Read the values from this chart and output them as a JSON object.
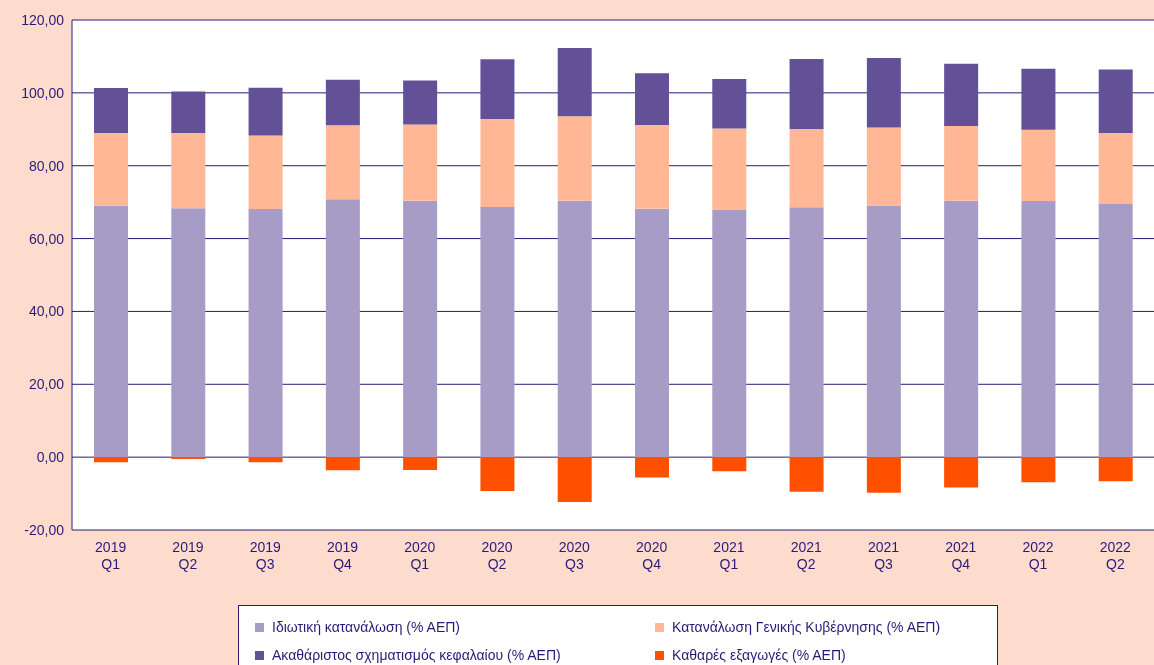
{
  "chart_data": {
    "type": "bar",
    "stacked": true,
    "categories": [
      "2019 Q1",
      "2019 Q2",
      "2019 Q3",
      "2019 Q4",
      "2020 Q1",
      "2020 Q2",
      "2020 Q3",
      "2020 Q4",
      "2021 Q1",
      "2021 Q2",
      "2021 Q3",
      "2021 Q4",
      "2022 Q1",
      "2022 Q2"
    ],
    "series": [
      {
        "name": "Ιδιωτική κατανάλωση (% ΑΕΠ)",
        "color": "#a69cc6",
        "values": [
          69.0,
          68.3,
          68.1,
          70.8,
          70.4,
          68.7,
          70.4,
          68.2,
          68.0,
          68.6,
          69.1,
          70.4,
          70.3,
          69.5
        ]
      },
      {
        "name": "Κατανάλωση Γενικής Κυβέρνησης (% ΑΕΠ)",
        "color": "#ffb796",
        "values": [
          20.0,
          20.7,
          20.2,
          20.3,
          20.9,
          24.1,
          23.2,
          23.0,
          22.2,
          21.5,
          21.4,
          20.5,
          19.6,
          19.5
        ]
      },
      {
        "name": "Ακαθάριστος σχηματισμός κεφαλαίου (% ΑΕΠ)",
        "color": "#635198",
        "values": [
          12.3,
          11.4,
          13.1,
          12.5,
          12.1,
          16.4,
          18.7,
          14.2,
          13.6,
          19.2,
          19.1,
          17.1,
          16.7,
          17.4
        ]
      },
      {
        "name": "Καθαρές εξαγωγές (% ΑΕΠ)",
        "color": "#ff5000",
        "values": [
          -1.4,
          -0.5,
          -1.4,
          -3.6,
          -3.5,
          -9.3,
          -12.3,
          -5.6,
          -3.9,
          -9.5,
          -9.8,
          -8.3,
          -6.9,
          -6.6
        ]
      }
    ],
    "ylim": [
      -20,
      120
    ],
    "yticks": [
      {
        "value": -20,
        "label": "-20,00"
      },
      {
        "value": 0,
        "label": "0,00"
      },
      {
        "value": 20,
        "label": "20,00"
      },
      {
        "value": 40,
        "label": "40,00"
      },
      {
        "value": 60,
        "label": "60,00"
      },
      {
        "value": 80,
        "label": "80,00"
      },
      {
        "value": 100,
        "label": "100,00"
      },
      {
        "value": 120,
        "label": "120,00"
      }
    ],
    "grid": "y",
    "legend": "bottom"
  }
}
